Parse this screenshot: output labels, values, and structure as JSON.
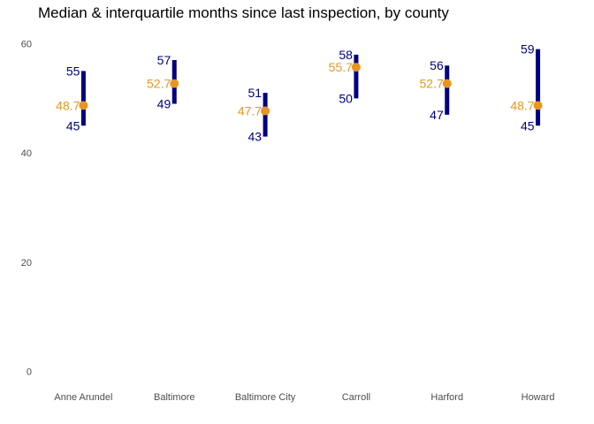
{
  "chart_data": {
    "type": "range",
    "title": "Median & interquartile months since last inspection, by county",
    "xlabel": "",
    "ylabel": "",
    "categories": [
      "Anne Arundel",
      "Baltimore",
      "Baltimore City",
      "Carroll",
      "Harford",
      "Howard"
    ],
    "series": [
      {
        "name": "",
        "role": "q1",
        "values": [
          45,
          49,
          43,
          50,
          47,
          45
        ],
        "labels": [
          "45",
          "49",
          "43",
          "50",
          "47",
          "45"
        ]
      },
      {
        "name": "",
        "role": "q3",
        "values": [
          55,
          57,
          51,
          58,
          56,
          59
        ],
        "labels": [
          "55",
          "57",
          "51",
          "58",
          "56",
          "59"
        ]
      },
      {
        "name": "",
        "role": "median",
        "values": [
          48.7,
          52.7,
          47.7,
          55.7,
          52.7,
          48.7
        ],
        "labels": [
          "48.7",
          "52.7",
          "47.7",
          "55.7",
          "52.7",
          "48.7"
        ]
      }
    ],
    "yticks": [
      "0",
      "20",
      "40",
      "60"
    ],
    "ytick_values": [
      0,
      20,
      40,
      60
    ],
    "ylim": [
      -0.3,
      61.5
    ],
    "grid": false,
    "legend": "none",
    "colors": {
      "range": "#000080",
      "median": "#E8961E",
      "label_range": "#000080",
      "label_median": "#E8961E"
    }
  }
}
